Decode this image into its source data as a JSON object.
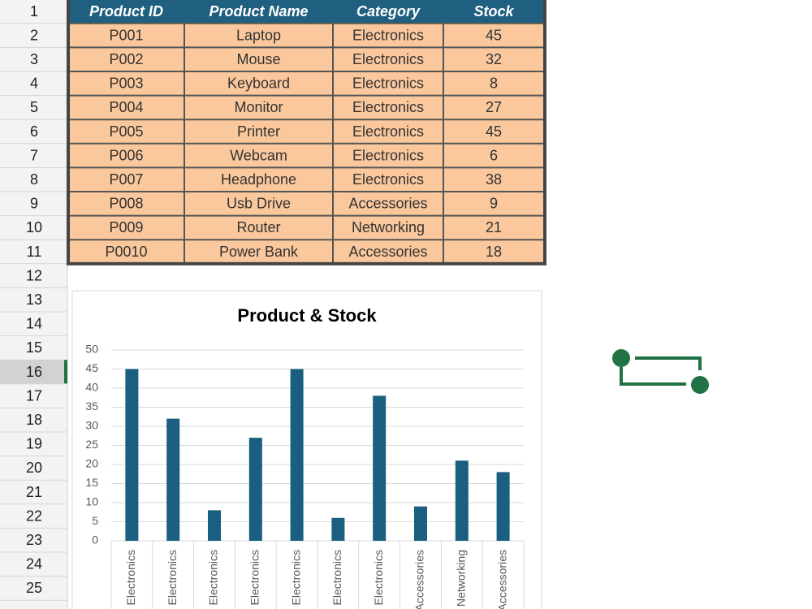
{
  "row_numbers": [
    "1",
    "2",
    "3",
    "4",
    "5",
    "6",
    "7",
    "8",
    "9",
    "10",
    "11",
    "12",
    "13",
    "14",
    "15",
    "16",
    "17",
    "18",
    "19",
    "20",
    "21",
    "22",
    "23",
    "24",
    "25"
  ],
  "table": {
    "header": [
      "Product ID",
      "Product Name",
      "Category",
      "Stock"
    ],
    "rows": [
      [
        "P001",
        "Laptop",
        "Electronics",
        45
      ],
      [
        "P002",
        "Mouse",
        "Electronics",
        32
      ],
      [
        "P003",
        "Keyboard",
        "Electronics",
        8
      ],
      [
        "P004",
        "Monitor",
        "Electronics",
        27
      ],
      [
        "P005",
        "Printer",
        "Electronics",
        45
      ],
      [
        "P006",
        "Webcam",
        "Electronics",
        6
      ],
      [
        "P007",
        "Headphone",
        "Electronics",
        38
      ],
      [
        "P008",
        "Usb Drive",
        "Accessories",
        9
      ],
      [
        "P009",
        "Router",
        "Networking",
        21
      ],
      [
        "P0010",
        "Power Bank",
        "Accessories",
        18
      ]
    ]
  },
  "chart_data": {
    "type": "bar",
    "title": "Product & Stock",
    "categories": [
      "Electronics",
      "Electronics",
      "Electronics",
      "Electronics",
      "Electronics",
      "Electronics",
      "Electronics",
      "Accessories",
      "Networking",
      "Accessories"
    ],
    "values": [
      45,
      32,
      8,
      27,
      45,
      6,
      38,
      9,
      21,
      18
    ],
    "color": "#1a5e80",
    "ylim": [
      0,
      50
    ],
    "yticks": [
      0,
      5,
      10,
      15,
      20,
      25,
      30,
      35,
      40,
      45,
      50
    ],
    "grid": true
  }
}
